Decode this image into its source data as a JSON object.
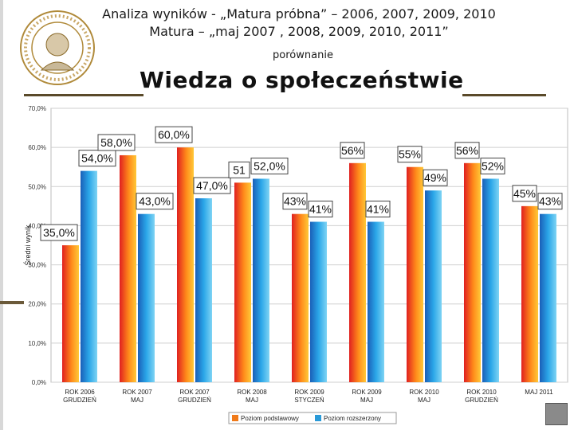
{
  "header": {
    "line1": "Analiza wyników  - „Matura próbna” – 2006, 2007, 2009, 2010",
    "line2": "Matura – „maj 2007 , 2008, 2009, 2010, 2011”",
    "line3": "porównanie",
    "title": "Wiedza o społeczeństwie"
  },
  "colors": {
    "basic": "#f07a1a",
    "extended": "#2a9ad8"
  },
  "chart_data": {
    "type": "bar",
    "ylabel": "Średni wynik",
    "ylim": [
      0,
      70
    ],
    "yticks": [
      "0,0%",
      "10,0%",
      "20,0%",
      "30,0%",
      "40,0%",
      "50,0%",
      "60,0%",
      "70,0%"
    ],
    "categories": [
      [
        "ROK 2006",
        "GRUDZIEŃ"
      ],
      [
        "ROK 2007",
        "MAJ"
      ],
      [
        "ROK 2007",
        "GRUDZIEŃ"
      ],
      [
        "ROK 2008",
        "MAJ"
      ],
      [
        "ROK 2009",
        "STYCZEŃ"
      ],
      [
        "ROK 2009",
        "MAJ"
      ],
      [
        "ROK 2010",
        "MAJ"
      ],
      [
        "ROK 2010",
        "GRUDZIEŃ"
      ],
      [
        "MAJ 2011",
        ""
      ]
    ],
    "series": [
      {
        "name": "Poziom podstawowy",
        "values": [
          35,
          58,
          60,
          51,
          43,
          56,
          55,
          56,
          45
        ],
        "labels": [
          "35,0%",
          "58,0%",
          "60,0%",
          "51",
          "43%",
          "56%",
          "55%",
          "56%",
          "45%"
        ]
      },
      {
        "name": "Poziom rozszerzony",
        "values": [
          54,
          43,
          47,
          52,
          41,
          41,
          49,
          52,
          43
        ],
        "labels": [
          "54,0%",
          "43,0%",
          "47,0%",
          "52,0%",
          "41%",
          "41%",
          "49%",
          "52%",
          "43%"
        ]
      }
    ],
    "legend": [
      "Poziom podstawowy",
      "Poziom rozszerzony"
    ]
  }
}
